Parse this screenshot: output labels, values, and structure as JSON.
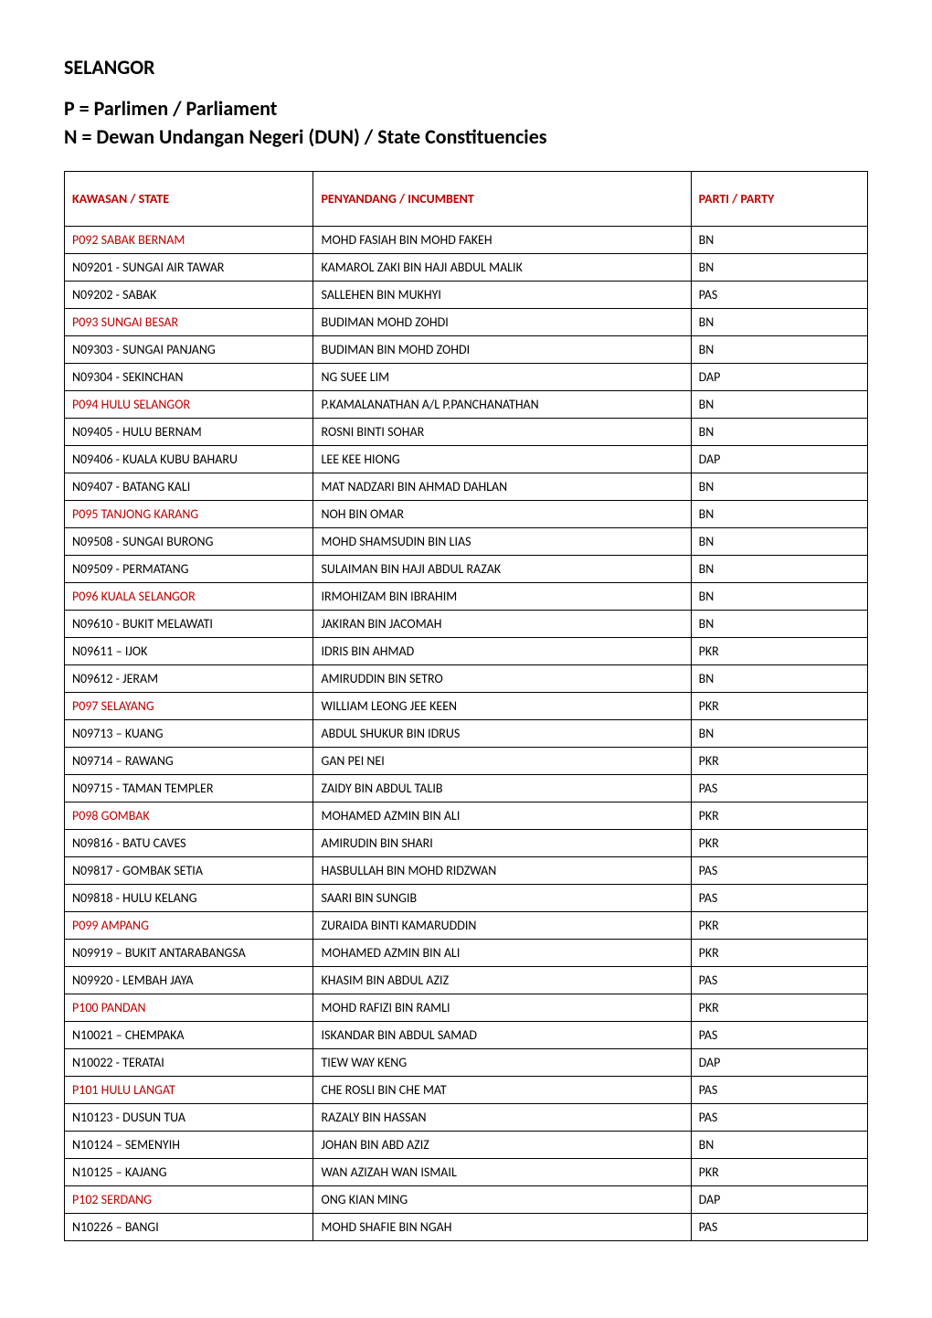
{
  "title": "SELANGOR",
  "subtitle1": "P = Parlimen / Parliament",
  "subtitle2": "N = Dewan Undangan Negeri (DUN) / State Constituencies",
  "headers": {
    "kawasan": "KAWASAN / STATE",
    "incumbent": "PENYANDANG / INCUMBENT",
    "party": "PARTI / PARTY"
  },
  "header_color": "#c00000",
  "rows": [
    {
      "kawasan": "P092 SABAK BERNAM",
      "is_p": true,
      "incumbent": "MOHD FASIAH BIN MOHD FAKEH",
      "party": "BN"
    },
    {
      "kawasan": "N09201 - SUNGAI AIR TAWAR",
      "is_p": false,
      "incumbent": "KAMAROL ZAKI BIN HAJI ABDUL MALIK",
      "party": "BN"
    },
    {
      "kawasan": "N09202 - SABAK",
      "is_p": false,
      "incumbent": "SALLEHEN BIN MUKHYI",
      "party": "PAS"
    },
    {
      "kawasan": "P093 SUNGAI BESAR",
      "is_p": true,
      "incumbent": "BUDIMAN MOHD ZOHDI",
      "party": "BN"
    },
    {
      "kawasan": "N09303 - SUNGAI PANJANG",
      "is_p": false,
      "incumbent": "BUDIMAN BIN MOHD ZOHDI",
      "party": "BN"
    },
    {
      "kawasan": "N09304 - SEKINCHAN",
      "is_p": false,
      "incumbent": "NG SUEE LIM",
      "party": "DAP"
    },
    {
      "kawasan": "P094 HULU SELANGOR",
      "is_p": true,
      "incumbent": "P.KAMALANATHAN A/L P.PANCHANATHAN",
      "party": "BN"
    },
    {
      "kawasan": "N09405 - HULU BERNAM",
      "is_p": false,
      "incumbent": "ROSNI BINTI SOHAR",
      "party": "BN"
    },
    {
      "kawasan": "N09406 - KUALA KUBU BAHARU",
      "is_p": false,
      "incumbent": "LEE KEE HIONG",
      "party": "DAP"
    },
    {
      "kawasan": "N09407 - BATANG KALI",
      "is_p": false,
      "incumbent": "MAT NADZARI BIN AHMAD DAHLAN",
      "party": "BN"
    },
    {
      "kawasan": "P095 TANJONG KARANG",
      "is_p": true,
      "incumbent": "NOH BIN OMAR",
      "party": "BN"
    },
    {
      "kawasan": "N09508 - SUNGAI BURONG",
      "is_p": false,
      "incumbent": "MOHD SHAMSUDIN BIN LIAS",
      "party": "BN"
    },
    {
      "kawasan": "N09509 - PERMATANG",
      "is_p": false,
      "incumbent": "SULAIMAN BIN HAJI ABDUL RAZAK",
      "party": "BN"
    },
    {
      "kawasan": "P096 KUALA SELANGOR",
      "is_p": true,
      "incumbent": "IRMOHIZAM BIN IBRAHIM",
      "party": "BN"
    },
    {
      "kawasan": "N09610 - BUKIT MELAWATI",
      "is_p": false,
      "incumbent": "JAKIRAN BIN JACOMAH",
      "party": "BN"
    },
    {
      "kawasan": "N09611 – IJOK",
      "is_p": false,
      "incumbent": "IDRIS BIN AHMAD",
      "party": "PKR"
    },
    {
      "kawasan": "N09612 - JERAM",
      "is_p": false,
      "incumbent": "AMIRUDDIN BIN SETRO",
      "party": "BN"
    },
    {
      "kawasan": "P097 SELAYANG",
      "is_p": true,
      "incumbent": "WILLIAM LEONG JEE KEEN",
      "party": "PKR"
    },
    {
      "kawasan": "N09713 – KUANG",
      "is_p": false,
      "incumbent": "ABDUL SHUKUR BIN IDRUS",
      "party": "BN"
    },
    {
      "kawasan": "N09714 – RAWANG",
      "is_p": false,
      "incumbent": "GAN PEI NEI",
      "party": "PKR"
    },
    {
      "kawasan": "N09715 - TAMAN TEMPLER",
      "is_p": false,
      "incumbent": "ZAIDY BIN ABDUL TALIB",
      "party": "PAS"
    },
    {
      "kawasan": "P098 GOMBAK",
      "is_p": true,
      "incumbent": "MOHAMED AZMIN BIN ALI",
      "party": "PKR"
    },
    {
      "kawasan": "N09816 - BATU CAVES",
      "is_p": false,
      "incumbent": "AMIRUDIN BIN SHARI",
      "party": "PKR"
    },
    {
      "kawasan": "N09817 - GOMBAK SETIA",
      "is_p": false,
      "incumbent": "HASBULLAH BIN MOHD RIDZWAN",
      "party": "PAS"
    },
    {
      "kawasan": "N09818 - HULU KELANG",
      "is_p": false,
      "incumbent": "SAARI BIN SUNGIB",
      "party": "PAS"
    },
    {
      "kawasan": "P099 AMPANG",
      "is_p": true,
      "incumbent": "ZURAIDA BINTI KAMARUDDIN",
      "party": "PKR"
    },
    {
      "kawasan": "N09919 – BUKIT ANTARABANGSA",
      "is_p": false,
      "incumbent": "MOHAMED AZMIN BIN ALI",
      "party": "PKR"
    },
    {
      "kawasan": "N09920 - LEMBAH JAYA",
      "is_p": false,
      "incumbent": "KHASIM BIN ABDUL AZIZ",
      "party": "PAS"
    },
    {
      "kawasan": "P100 PANDAN",
      "is_p": true,
      "incumbent": "MOHD RAFIZI BIN RAMLI",
      "party": "PKR"
    },
    {
      "kawasan": "N10021 – CHEMPAKA",
      "is_p": false,
      "incumbent": "ISKANDAR BIN ABDUL SAMAD",
      "party": "PAS"
    },
    {
      "kawasan": "N10022 - TERATAI",
      "is_p": false,
      "incumbent": "TIEW WAY KENG",
      "party": "DAP"
    },
    {
      "kawasan": "P101 HULU LANGAT",
      "is_p": true,
      "incumbent": "CHE ROSLI BIN CHE MAT",
      "party": "PAS"
    },
    {
      "kawasan": "N10123 - DUSUN TUA",
      "is_p": false,
      "incumbent": "RAZALY BIN HASSAN",
      "party": "PAS"
    },
    {
      "kawasan": "N10124 – SEMENYIH",
      "is_p": false,
      "incumbent": "JOHAN BIN ABD AZIZ",
      "party": "BN"
    },
    {
      "kawasan": "N10125 – KAJANG",
      "is_p": false,
      "incumbent": "WAN AZIZAH WAN ISMAIL",
      "party": "PKR"
    },
    {
      "kawasan": "P102 SERDANG",
      "is_p": true,
      "incumbent": "ONG KIAN MING",
      "party": "DAP"
    },
    {
      "kawasan": "N10226 – BANGI",
      "is_p": false,
      "incumbent": "MOHD SHAFIE BIN NGAH",
      "party": "PAS"
    }
  ],
  "styling": {
    "page_bg": "#ffffff",
    "border_color": "#000000",
    "p_row_color": "#c00000",
    "n_row_color": "#000000",
    "title_fontsize": 22,
    "cell_fontsize": 14
  }
}
